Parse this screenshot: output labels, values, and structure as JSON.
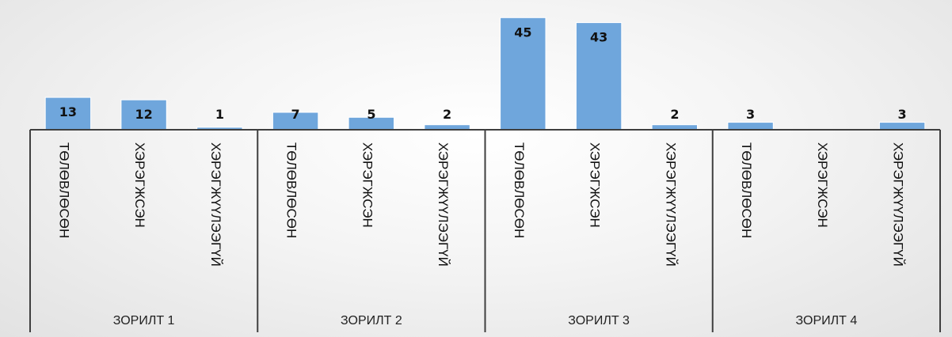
{
  "chart_data": {
    "type": "bar",
    "groups": [
      "ЗОРИЛТ 1",
      "ЗОРИЛТ 2",
      "ЗОРИЛТ 3",
      "ЗОРИЛТ 4"
    ],
    "categories": [
      "ТӨЛӨВЛӨСӨН",
      "ХЭРЭГЖСЭН",
      "ХЭРЭГЖҮҮЛЭЭГҮЙ"
    ],
    "values": [
      [
        13,
        12,
        1
      ],
      [
        7,
        5,
        2
      ],
      [
        45,
        43,
        2
      ],
      [
        3,
        0,
        3
      ]
    ],
    "data_labels": [
      [
        "13",
        "12",
        "1"
      ],
      [
        "7",
        "5",
        "2"
      ],
      [
        "45",
        "43",
        "2"
      ],
      [
        "3",
        "",
        "3"
      ]
    ],
    "ylim": [
      0,
      47
    ],
    "grid": false,
    "legend": "none",
    "colors": {
      "bar": "#6fa6dc",
      "axis": "#3f3f3f",
      "text": "#111111"
    }
  }
}
